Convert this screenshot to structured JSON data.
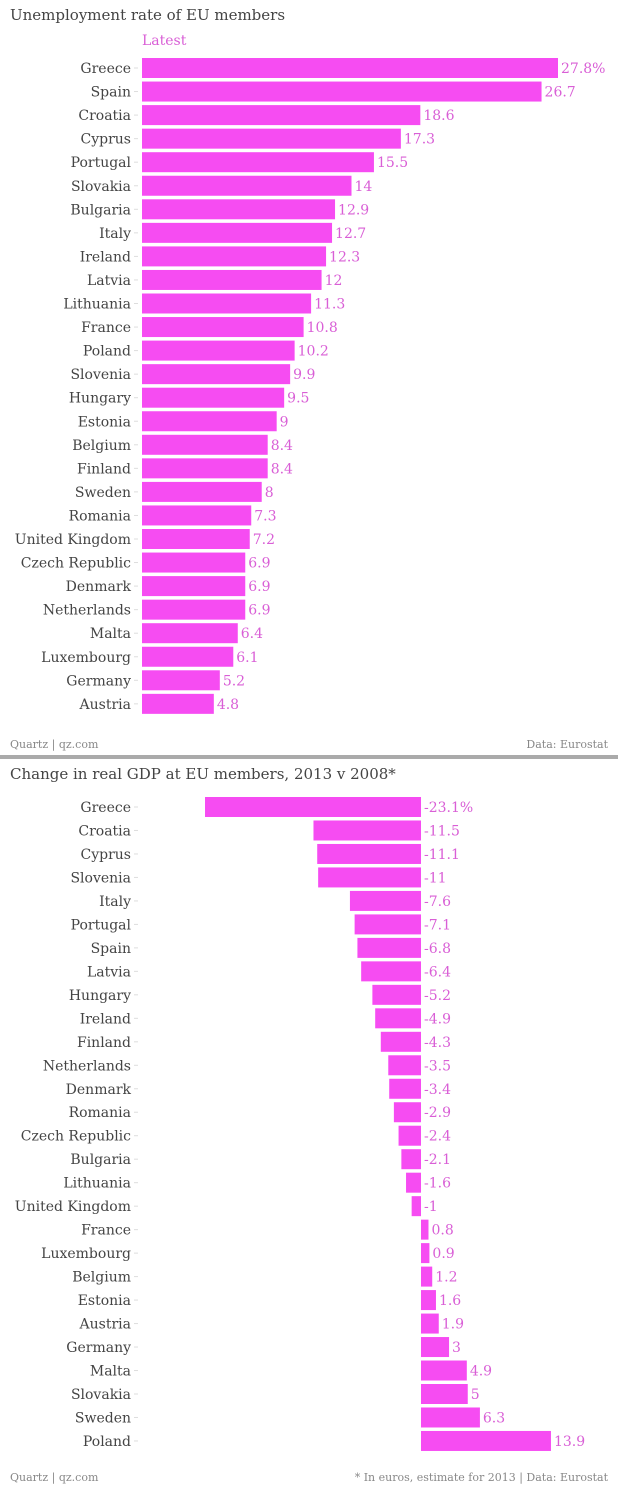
{
  "colors": {
    "bar": "#f64cf2",
    "value_text": "#d95fd6",
    "label_text": "#444444",
    "footer_text": "#888888"
  },
  "chart_data": [
    {
      "type": "bar",
      "orientation": "horizontal",
      "title": "Unemployment rate of EU members",
      "series": [
        {
          "name": "Latest",
          "values": [
            27.8,
            26.7,
            18.6,
            17.3,
            15.5,
            14,
            12.9,
            12.7,
            12.3,
            12,
            11.3,
            10.8,
            10.2,
            9.9,
            9.5,
            9,
            8.4,
            8.4,
            8,
            7.3,
            7.2,
            6.9,
            6.9,
            6.9,
            6.4,
            6.1,
            5.2,
            4.8
          ]
        }
      ],
      "categories": [
        "Greece",
        "Spain",
        "Croatia",
        "Cyprus",
        "Portugal",
        "Slovakia",
        "Bulgaria",
        "Italy",
        "Ireland",
        "Latvia",
        "Lithuania",
        "France",
        "Poland",
        "Slovenia",
        "Hungary",
        "Estonia",
        "Belgium",
        "Finland",
        "Sweden",
        "Romania",
        "United Kingdom",
        "Czech Republic",
        "Denmark",
        "Netherlands",
        "Malta",
        "Luxembourg",
        "Germany",
        "Austria"
      ],
      "first_value_suffix": "%",
      "xlim": [
        0,
        27.8
      ],
      "grid": false,
      "footer_left": "Quartz | qz.com",
      "footer_right": "Data: Eurostat"
    },
    {
      "type": "bar",
      "orientation": "horizontal",
      "title": "Change in real GDP at EU members, 2013 v 2008*",
      "categories": [
        "Greece",
        "Croatia",
        "Cyprus",
        "Slovenia",
        "Italy",
        "Portugal",
        "Spain",
        "Latvia",
        "Hungary",
        "Ireland",
        "Finland",
        "Netherlands",
        "Denmark",
        "Romania",
        "Czech Republic",
        "Bulgaria",
        "Lithuania",
        "United Kingdom",
        "France",
        "Luxembourg",
        "Belgium",
        "Estonia",
        "Austria",
        "Germany",
        "Malta",
        "Slovakia",
        "Sweden",
        "Poland"
      ],
      "values": [
        -23.1,
        -11.5,
        -11.1,
        -11,
        -7.6,
        -7.1,
        -6.8,
        -6.4,
        -5.2,
        -4.9,
        -4.3,
        -3.5,
        -3.4,
        -2.9,
        -2.4,
        -2.1,
        -1.6,
        -1,
        0.8,
        0.9,
        1.2,
        1.6,
        1.9,
        3,
        4.9,
        5,
        6.3,
        13.9
      ],
      "first_value_suffix": "%",
      "xlim": [
        -23.1,
        13.9
      ],
      "grid": false,
      "footer_left": "Quartz | qz.com",
      "footer_right": "* In euros, estimate for 2013 | Data: Eurostat"
    }
  ]
}
